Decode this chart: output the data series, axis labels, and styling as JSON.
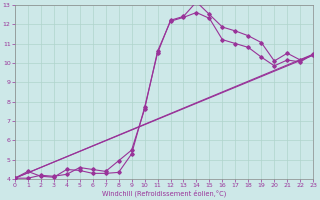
{
  "xlabel": "Windchill (Refroidissement éolien,°C)",
  "xlim": [
    0,
    23
  ],
  "ylim": [
    4,
    13
  ],
  "xticks": [
    0,
    1,
    2,
    3,
    4,
    5,
    6,
    7,
    8,
    9,
    10,
    11,
    12,
    13,
    14,
    15,
    16,
    17,
    18,
    19,
    20,
    21,
    22,
    23
  ],
  "yticks": [
    4,
    5,
    6,
    7,
    8,
    9,
    10,
    11,
    12,
    13
  ],
  "bg_color": "#cde8e8",
  "line_color": "#993399",
  "grid_color": "#b0d4cc",
  "line1_x": [
    0,
    1,
    2,
    3,
    4,
    5,
    6,
    7,
    8,
    9,
    10,
    11,
    12,
    13,
    14,
    15,
    16,
    17,
    18,
    19,
    20,
    21,
    22,
    23
  ],
  "line1_y": [
    4.05,
    4.4,
    4.15,
    4.1,
    4.5,
    4.45,
    4.3,
    4.3,
    4.35,
    5.3,
    7.7,
    10.5,
    12.2,
    12.4,
    13.15,
    12.5,
    11.85,
    11.65,
    11.4,
    11.05,
    10.1,
    10.5,
    10.15,
    10.4
  ],
  "line2_x": [
    0,
    1,
    2,
    3,
    4,
    5,
    6,
    7,
    8,
    9,
    10,
    11,
    12,
    13,
    14,
    15,
    16,
    17,
    18,
    19,
    20,
    21,
    22,
    23
  ],
  "line2_y": [
    4.05,
    4.05,
    4.2,
    4.15,
    4.25,
    4.6,
    4.5,
    4.4,
    4.95,
    5.5,
    7.6,
    10.6,
    12.15,
    12.35,
    12.6,
    12.3,
    11.2,
    11.0,
    10.8,
    10.3,
    9.85,
    10.15,
    10.05,
    10.45
  ],
  "line3_x": [
    0,
    23
  ],
  "line3_y": [
    4.05,
    10.4
  ],
  "line4_x": [
    0,
    23
  ],
  "line4_y": [
    4.05,
    10.45
  ]
}
